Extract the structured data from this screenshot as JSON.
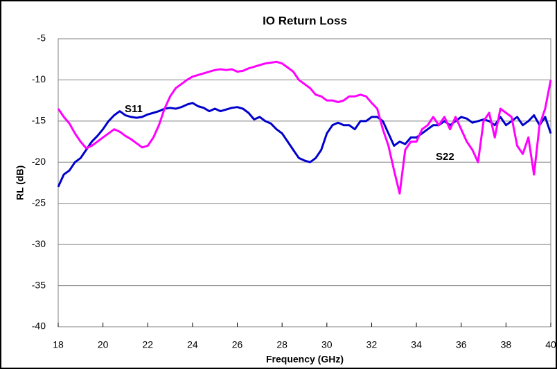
{
  "chart_data": {
    "type": "line",
    "title": "IO Return Loss",
    "x_label": "Frequency (GHz)",
    "y_label": "RL (dB)",
    "x": [
      18,
      18.25,
      18.5,
      18.75,
      19,
      19.25,
      19.5,
      19.75,
      20,
      20.25,
      20.5,
      20.75,
      21,
      21.25,
      21.5,
      21.75,
      22,
      22.25,
      22.5,
      22.75,
      23,
      23.25,
      23.5,
      23.75,
      24,
      24.25,
      24.5,
      24.75,
      25,
      25.25,
      25.5,
      25.75,
      26,
      26.25,
      26.5,
      26.75,
      27,
      27.25,
      27.5,
      27.75,
      28,
      28.25,
      28.5,
      28.75,
      29,
      29.25,
      29.5,
      29.75,
      30,
      30.25,
      30.5,
      30.75,
      31,
      31.25,
      31.5,
      31.75,
      32,
      32.25,
      32.5,
      32.75,
      33,
      33.25,
      33.5,
      33.75,
      34,
      34.25,
      34.5,
      34.75,
      35,
      35.25,
      35.5,
      35.75,
      36,
      36.25,
      36.5,
      36.75,
      37,
      37.25,
      37.5,
      37.75,
      38,
      38.25,
      38.5,
      38.75,
      39,
      39.25,
      39.5,
      39.75,
      40
    ],
    "series": [
      {
        "name": "S11",
        "color": "#0000cc",
        "values": [
          -23,
          -21.5,
          -21,
          -20,
          -19.5,
          -18.5,
          -17.5,
          -16.8,
          -16,
          -15,
          -14.3,
          -13.8,
          -14.3,
          -14.5,
          -14.6,
          -14.5,
          -14.2,
          -14,
          -13.8,
          -13.5,
          -13.4,
          -13.5,
          -13.3,
          -13,
          -12.8,
          -13.2,
          -13.4,
          -13.8,
          -13.5,
          -13.8,
          -13.6,
          -13.4,
          -13.3,
          -13.5,
          -14,
          -14.8,
          -14.5,
          -15,
          -15.3,
          -16,
          -16.5,
          -17.5,
          -18.5,
          -19.5,
          -19.8,
          -20,
          -19.5,
          -18.5,
          -16.5,
          -15.5,
          -15.2,
          -15.5,
          -15.5,
          -16,
          -15,
          -15,
          -14.5,
          -14.5,
          -15,
          -16.5,
          -18,
          -17.5,
          -17.8,
          -17,
          -17,
          -16.5,
          -16,
          -15.5,
          -15.5,
          -15,
          -15.5,
          -15,
          -14.5,
          -14.7,
          -15.2,
          -15,
          -14.8,
          -15,
          -15.5,
          -14.5,
          -15.5,
          -15,
          -14.5,
          -15.5,
          -15,
          -14.3,
          -15.5,
          -14.5,
          -16.5
        ]
      },
      {
        "name": "S22",
        "color": "#ff00ff",
        "values": [
          -13.5,
          -14.5,
          -15.3,
          -16.5,
          -17.5,
          -18.3,
          -18,
          -17.5,
          -17,
          -16.5,
          -16,
          -16.3,
          -16.8,
          -17.2,
          -17.7,
          -18.2,
          -18,
          -17,
          -15.5,
          -13.5,
          -12,
          -11,
          -10.5,
          -10,
          -9.6,
          -9.4,
          -9.2,
          -9,
          -8.8,
          -8.7,
          -8.8,
          -8.7,
          -9,
          -8.9,
          -8.6,
          -8.4,
          -8.2,
          -8,
          -7.9,
          -7.8,
          -8,
          -8.5,
          -9,
          -10,
          -10.5,
          -11,
          -11.8,
          -12,
          -12.5,
          -12.5,
          -12.7,
          -12.5,
          -12,
          -12,
          -11.8,
          -12,
          -12.8,
          -13.5,
          -16,
          -18,
          -21,
          -23.8,
          -18.5,
          -17.5,
          -17.5,
          -16,
          -15.5,
          -14.5,
          -15.5,
          -14.5,
          -16,
          -14.5,
          -16,
          -17.5,
          -18.5,
          -20,
          -15,
          -14,
          -17,
          -13.5,
          -14,
          -14.5,
          -18,
          -19,
          -17,
          -21.5,
          -15.5,
          -13.5,
          -10
        ]
      }
    ],
    "xlim": [
      18,
      40
    ],
    "xticks": [
      18,
      20,
      22,
      24,
      26,
      28,
      30,
      32,
      34,
      36,
      38,
      40
    ],
    "ylim": [
      -40,
      -5
    ],
    "yticks": [
      -40,
      -35,
      -30,
      -25,
      -20,
      -15,
      -10,
      -5
    ],
    "grid": true
  }
}
